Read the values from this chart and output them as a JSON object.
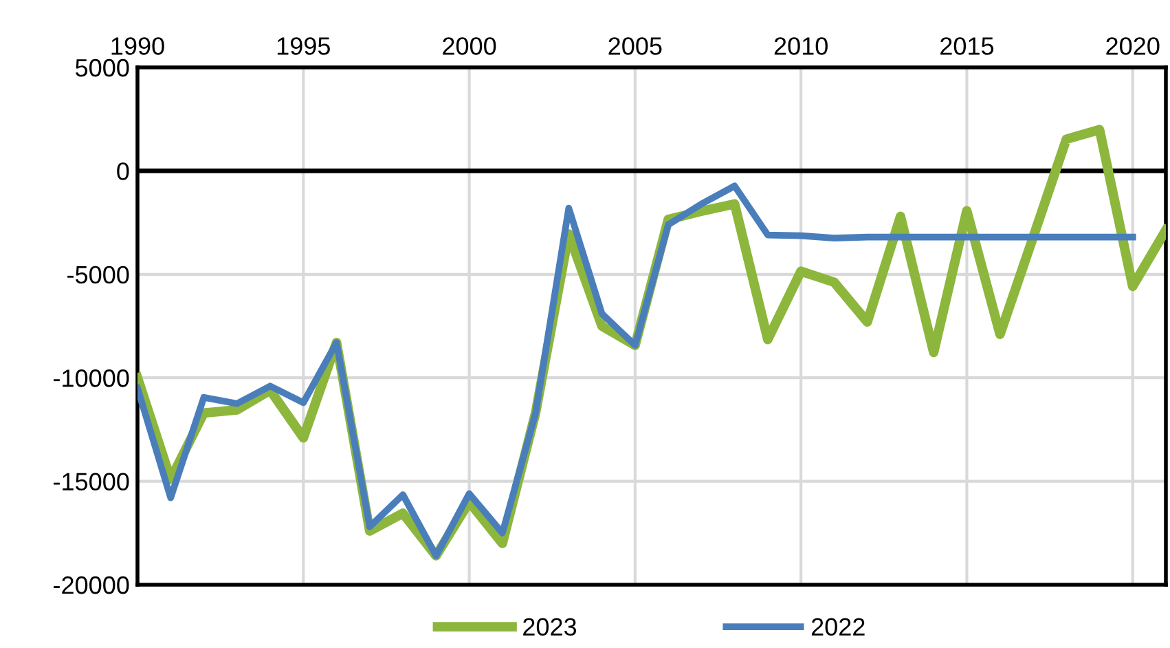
{
  "chart_data": {
    "type": "line",
    "x": [
      1990,
      1991,
      1992,
      1993,
      1994,
      1995,
      1996,
      1997,
      1998,
      1999,
      2000,
      2001,
      2002,
      2003,
      2004,
      2005,
      2006,
      2007,
      2008,
      2009,
      2010,
      2011,
      2012,
      2013,
      2014,
      2015,
      2016,
      2017,
      2018,
      2019,
      2020,
      2021
    ],
    "series": [
      {
        "name": "2023",
        "color": "#8db63c",
        "values": [
          -10000,
          -14900,
          -11700,
          -11550,
          -10600,
          -12900,
          -8300,
          -17400,
          -16550,
          -18600,
          -16000,
          -18000,
          -11700,
          -3050,
          -7500,
          -8430,
          -2350,
          -1950,
          -1600,
          -8150,
          -4850,
          -5380,
          -7300,
          -2200,
          -8770,
          -1930,
          -7900,
          -3200,
          1530,
          1990,
          -5580,
          -2860
        ]
      },
      {
        "name": "2022",
        "color": "#4a7ebb",
        "values": [
          -10500,
          -15800,
          -10950,
          -11250,
          -10400,
          -11200,
          -8300,
          -17200,
          -15650,
          -18600,
          -15600,
          -17500,
          -11700,
          -1800,
          -6900,
          -8430,
          -2600,
          -1600,
          -730,
          -3100,
          -3130,
          -3250,
          -3200,
          -3200,
          -3200,
          -3200,
          -3200,
          -3200,
          -3200,
          -3200,
          -3200,
          null
        ]
      }
    ],
    "xlim": [
      1990,
      2021
    ],
    "xticks": [
      1990,
      1995,
      2000,
      2005,
      2010,
      2015,
      2020
    ],
    "ylim": [
      -20000,
      5000
    ],
    "yticks": [
      -20000,
      -15000,
      -10000,
      -5000,
      0,
      5000
    ],
    "ref_lines": [
      {
        "axis": "y",
        "value": 0,
        "color": "#000000"
      }
    ],
    "grid": true,
    "legend": "bottom",
    "marker": "none",
    "line_style": "solid"
  }
}
